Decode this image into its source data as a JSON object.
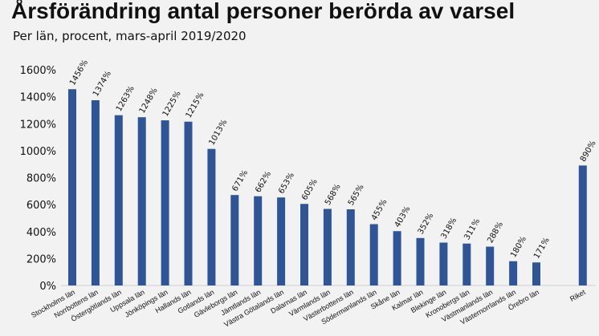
{
  "chart_data": {
    "type": "bar",
    "title": "Årsförändring antal personer berörda av varsel",
    "subtitle": "Per län, procent, mars-april 2019/2020",
    "categories": [
      "Stockholms län",
      "Norrbottens län",
      "Östergötlands län",
      "Uppsala län",
      "Jönköpings län",
      "Hallands län",
      "Gotlands län",
      "Gävleborgs län",
      "Jämtlands län",
      "Västra Götalands län",
      "Dalarnas län",
      "Värmlands län",
      "Västerbottens län",
      "Södermanlands län",
      "Skåne län",
      "Kalmar län",
      "Blekinge län",
      "Kronobergs län",
      "Västmanlands län",
      "Västernorrlands län",
      "Örebro län",
      "Riket"
    ],
    "values": [
      1456,
      1374,
      1263,
      1248,
      1225,
      1215,
      1013,
      671,
      662,
      653,
      605,
      568,
      565,
      455,
      403,
      352,
      318,
      311,
      288,
      180,
      171,
      890
    ],
    "value_suffix": "%",
    "yticks": [
      "0%",
      "200%",
      "400%",
      "600%",
      "800%",
      "1000%",
      "1200%",
      "1400%",
      "1600%"
    ],
    "ylim": [
      0,
      1600
    ],
    "grid": false,
    "bar_color": "#2f5597"
  }
}
